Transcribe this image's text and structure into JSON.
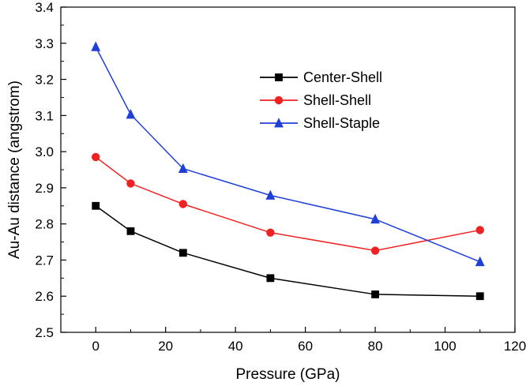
{
  "chart_data": {
    "type": "line",
    "title": "",
    "xlabel": "Pressure (GPa)",
    "ylabel": "Au-Au distance (angstrom)",
    "xlim": [
      -10,
      120
    ],
    "ylim": [
      2.5,
      3.4
    ],
    "xticks": [
      0,
      20,
      40,
      60,
      80,
      100,
      120
    ],
    "yticks": [
      2.5,
      2.6,
      2.7,
      2.8,
      2.9,
      3.0,
      3.1,
      3.2,
      3.3,
      3.4
    ],
    "xtick_labels": [
      "0",
      "20",
      "40",
      "60",
      "80",
      "100",
      "120"
    ],
    "ytick_labels": [
      "2.5",
      "2.6",
      "2.7",
      "2.8",
      "2.9",
      "3.0",
      "3.1",
      "3.2",
      "3.3",
      "3.4"
    ],
    "grid": false,
    "legend_position": "upper-right-inside",
    "x": [
      0,
      10,
      25,
      50,
      80,
      110
    ],
    "series": [
      {
        "name": "Center-Shell",
        "color": "#000000",
        "marker": "square",
        "values": [
          2.85,
          2.78,
          2.72,
          2.65,
          2.605,
          2.6
        ]
      },
      {
        "name": "Shell-Shell",
        "color": "#ee2222",
        "marker": "circle",
        "values": [
          2.985,
          2.912,
          2.855,
          2.776,
          2.726,
          2.783
        ]
      },
      {
        "name": "Shell-Staple",
        "color": "#1f3fd8",
        "marker": "triangle",
        "values": [
          3.29,
          3.103,
          2.953,
          2.879,
          2.813,
          2.695
        ]
      }
    ]
  }
}
